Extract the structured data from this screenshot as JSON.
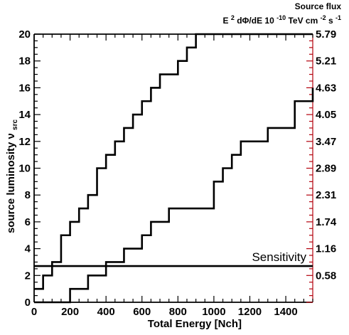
{
  "chart_data": {
    "type": "line",
    "xlabel": "Total Energy  [Nch]",
    "ylabel": "source luminosity ν",
    "ylabel_sub": "src",
    "right_title_line1": "Source flux",
    "right_title_line2_parts": {
      "a": "E",
      "a_sup": "2",
      "b": " dΦ/dE 10",
      "b_sup": "-10",
      "c": " TeV cm",
      "c_sup": "-2",
      "d": " s",
      "d_sup": "-1"
    },
    "xlim": [
      0,
      1550
    ],
    "ylim": [
      0,
      20
    ],
    "x_ticks": [
      0,
      200,
      400,
      600,
      800,
      1000,
      1200,
      1400
    ],
    "x_tick_labels": [
      "0",
      "200",
      "400",
      "600",
      "800",
      "1000",
      "1200",
      "1400"
    ],
    "y_ticks": [
      0,
      2,
      4,
      6,
      8,
      10,
      12,
      14,
      16,
      18,
      20
    ],
    "y_tick_labels": [
      "0",
      "2",
      "4",
      "6",
      "8",
      "10",
      "12",
      "14",
      "16",
      "18",
      "20"
    ],
    "right_ticks_y": [
      0,
      2,
      4,
      6,
      8,
      10,
      12,
      14,
      16,
      18,
      20
    ],
    "right_tick_labels": [
      "",
      "0.58",
      "1.16",
      "1.74",
      "2.31",
      "2.89",
      "3.47",
      "4.05",
      "4.63",
      "5.21",
      "5.79"
    ],
    "right_axis_color": "#b3000c",
    "series": [
      {
        "type": "step",
        "x": [
          0,
          50,
          100,
          150,
          200,
          250,
          300,
          350,
          400,
          450,
          500,
          550,
          600,
          650,
          700,
          750,
          800,
          850,
          900,
          1550
        ],
        "y": [
          1,
          2,
          3,
          5,
          6,
          7,
          8,
          10,
          11,
          12,
          13,
          14,
          15,
          16,
          17,
          17,
          18,
          19,
          20,
          20
        ]
      },
      {
        "type": "step",
        "x": [
          200,
          300,
          400,
          500,
          600,
          650,
          750,
          900,
          1000,
          1050,
          1100,
          1150,
          1300,
          1450,
          1550
        ],
        "y": [
          1,
          2,
          3,
          4,
          5,
          6,
          7,
          7,
          9,
          10,
          11,
          12,
          13,
          15,
          16
        ],
        "pre_x": [
          0,
          200
        ],
        "pre_y": [
          0,
          0
        ]
      }
    ],
    "hlines": [
      {
        "y": 2.7,
        "label": "Sensitivity"
      }
    ],
    "grid": false
  }
}
